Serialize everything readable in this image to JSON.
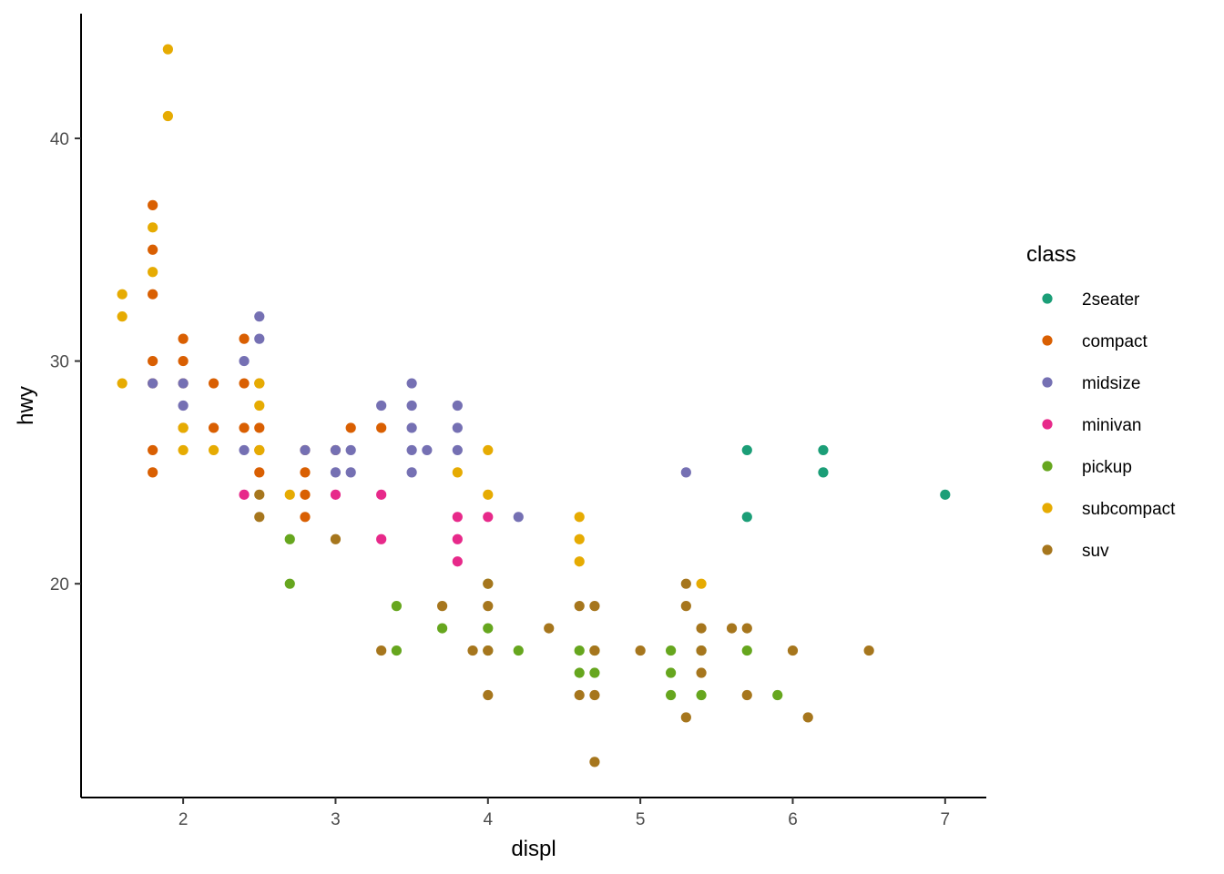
{
  "chart_data": {
    "type": "scatter",
    "title": "",
    "xlabel": "displ",
    "ylabel": "hwy",
    "xlim": [
      1.33,
      7.27
    ],
    "ylim": [
      10.4,
      45.6
    ],
    "x_ticks": [
      2,
      3,
      4,
      5,
      6,
      7
    ],
    "y_ticks": [
      20,
      30,
      40
    ],
    "grid": false,
    "legend": {
      "title": "class",
      "position": "right"
    },
    "series": [
      {
        "name": "2seater",
        "color": "#1B9E77",
        "points": [
          [
            5.7,
            26
          ],
          [
            5.7,
            23
          ],
          [
            6.2,
            26
          ],
          [
            6.2,
            25
          ],
          [
            7.0,
            24
          ]
        ]
      },
      {
        "name": "compact",
        "color": "#D95F02",
        "points": [
          [
            1.8,
            37
          ],
          [
            1.8,
            35
          ],
          [
            1.8,
            33
          ],
          [
            1.8,
            30
          ],
          [
            1.8,
            29
          ],
          [
            1.8,
            26
          ],
          [
            1.8,
            25
          ],
          [
            2.0,
            31
          ],
          [
            2.0,
            30
          ],
          [
            2.0,
            29
          ],
          [
            2.0,
            27
          ],
          [
            2.2,
            29
          ],
          [
            2.2,
            27
          ],
          [
            2.4,
            31
          ],
          [
            2.4,
            29
          ],
          [
            2.4,
            27
          ],
          [
            2.5,
            29
          ],
          [
            2.5,
            27
          ],
          [
            2.5,
            26
          ],
          [
            2.5,
            25
          ],
          [
            2.8,
            26
          ],
          [
            2.8,
            25
          ],
          [
            2.8,
            24
          ],
          [
            2.8,
            23
          ],
          [
            3.0,
            26
          ],
          [
            3.1,
            27
          ],
          [
            3.3,
            27
          ]
        ]
      },
      {
        "name": "midsize",
        "color": "#7570B3",
        "points": [
          [
            1.8,
            29
          ],
          [
            2.0,
            29
          ],
          [
            2.0,
            28
          ],
          [
            2.4,
            30
          ],
          [
            2.4,
            26
          ],
          [
            2.5,
            32
          ],
          [
            2.5,
            31
          ],
          [
            2.8,
            26
          ],
          [
            3.0,
            25
          ],
          [
            3.0,
            26
          ],
          [
            3.1,
            26
          ],
          [
            3.1,
            25
          ],
          [
            3.3,
            28
          ],
          [
            3.5,
            29
          ],
          [
            3.5,
            28
          ],
          [
            3.5,
            27
          ],
          [
            3.5,
            26
          ],
          [
            3.5,
            25
          ],
          [
            3.6,
            26
          ],
          [
            3.8,
            28
          ],
          [
            3.8,
            27
          ],
          [
            3.8,
            26
          ],
          [
            4.2,
            23
          ],
          [
            5.3,
            25
          ]
        ]
      },
      {
        "name": "minivan",
        "color": "#E7298A",
        "points": [
          [
            2.4,
            24
          ],
          [
            3.0,
            24
          ],
          [
            3.3,
            24
          ],
          [
            3.3,
            22
          ],
          [
            3.8,
            23
          ],
          [
            3.8,
            22
          ],
          [
            3.8,
            21
          ],
          [
            4.0,
            23
          ]
        ]
      },
      {
        "name": "pickup",
        "color": "#66A61E",
        "points": [
          [
            2.7,
            22
          ],
          [
            2.7,
            20
          ],
          [
            3.4,
            19
          ],
          [
            3.4,
            17
          ],
          [
            3.7,
            18
          ],
          [
            4.0,
            20
          ],
          [
            4.0,
            18
          ],
          [
            4.0,
            17
          ],
          [
            4.2,
            17
          ],
          [
            4.6,
            17
          ],
          [
            4.6,
            16
          ],
          [
            4.7,
            17
          ],
          [
            4.7,
            16
          ],
          [
            5.2,
            17
          ],
          [
            5.2,
            16
          ],
          [
            5.2,
            15
          ],
          [
            5.4,
            17
          ],
          [
            5.4,
            15
          ],
          [
            5.7,
            17
          ],
          [
            5.9,
            15
          ]
        ]
      },
      {
        "name": "subcompact",
        "color": "#E6AB02",
        "points": [
          [
            1.6,
            33
          ],
          [
            1.6,
            32
          ],
          [
            1.6,
            29
          ],
          [
            1.8,
            36
          ],
          [
            1.8,
            34
          ],
          [
            1.9,
            44
          ],
          [
            1.9,
            41
          ],
          [
            2.0,
            27
          ],
          [
            2.0,
            26
          ],
          [
            2.2,
            26
          ],
          [
            2.5,
            29
          ],
          [
            2.5,
            28
          ],
          [
            2.5,
            26
          ],
          [
            2.7,
            24
          ],
          [
            3.8,
            25
          ],
          [
            4.0,
            26
          ],
          [
            4.0,
            24
          ],
          [
            4.6,
            23
          ],
          [
            4.6,
            22
          ],
          [
            4.6,
            21
          ],
          [
            5.4,
            20
          ]
        ]
      },
      {
        "name": "suv",
        "color": "#A6761D",
        "points": [
          [
            2.5,
            24
          ],
          [
            2.5,
            23
          ],
          [
            3.0,
            22
          ],
          [
            3.3,
            17
          ],
          [
            3.7,
            19
          ],
          [
            3.9,
            17
          ],
          [
            4.0,
            20
          ],
          [
            4.0,
            19
          ],
          [
            4.0,
            17
          ],
          [
            4.0,
            15
          ],
          [
            4.4,
            18
          ],
          [
            4.6,
            19
          ],
          [
            4.6,
            15
          ],
          [
            4.7,
            19
          ],
          [
            4.7,
            17
          ],
          [
            4.7,
            15
          ],
          [
            4.7,
            12
          ],
          [
            5.0,
            17
          ],
          [
            5.3,
            20
          ],
          [
            5.3,
            19
          ],
          [
            5.3,
            14
          ],
          [
            5.4,
            18
          ],
          [
            5.4,
            17
          ],
          [
            5.4,
            16
          ],
          [
            5.6,
            18
          ],
          [
            5.7,
            18
          ],
          [
            5.7,
            15
          ],
          [
            6.0,
            17
          ],
          [
            6.1,
            14
          ],
          [
            6.5,
            17
          ]
        ]
      }
    ]
  }
}
